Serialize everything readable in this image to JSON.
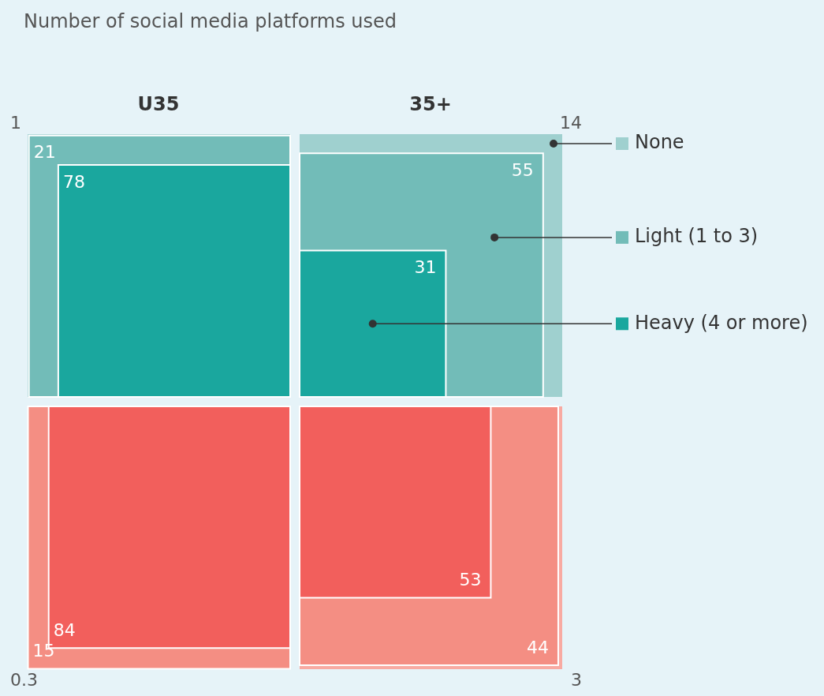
{
  "chart_data": {
    "type": "other",
    "title": "Number of social media platforms used",
    "categories": [
      "U35",
      "35+"
    ],
    "series": [
      {
        "name": "None",
        "color": "#9fd0cf",
        "values": [
          1,
          14
        ]
      },
      {
        "name": "Light (1 to 3)",
        "color": "#72bcb8",
        "values": [
          21,
          55
        ]
      },
      {
        "name": "Heavy (4 or more)",
        "color": "#1aa79e",
        "values": [
          78,
          31
        ]
      },
      {
        "color": "#f8aaa2",
        "values": [
          0.3,
          3
        ]
      },
      {
        "color": "#f48e83",
        "values": [
          15,
          44
        ]
      },
      {
        "color": "#f25f5c",
        "values": [
          84,
          53
        ]
      }
    ],
    "data_labels": true,
    "legend": "right"
  }
}
